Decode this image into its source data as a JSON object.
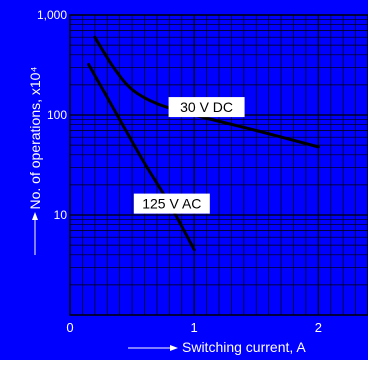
{
  "colors": {
    "background": "#0000ff",
    "plot_area": "#0000ff",
    "grid": "#000000",
    "curve": "#000000",
    "tick_text": "#ffffff",
    "label_box": "#ffffff",
    "label_text": "#000000"
  },
  "chart_data": {
    "type": "line",
    "title": "",
    "xlabel": "Switching current, A",
    "ylabel": "No. of operations, x10⁴",
    "xlim": [
      0,
      2.4
    ],
    "ylim": [
      1,
      1000
    ],
    "yscale": "log",
    "grid": true,
    "x_ticks": [
      {
        "value": 0,
        "label": "0"
      },
      {
        "value": 1,
        "label": "1"
      },
      {
        "value": 2,
        "label": "2"
      }
    ],
    "y_ticks": [
      {
        "value": 10,
        "label": "10"
      },
      {
        "value": 100,
        "label": "100"
      },
      {
        "value": 1000,
        "label": "1,000"
      }
    ],
    "series": [
      {
        "name": "30 V DC",
        "x": [
          0.2,
          0.35,
          0.5,
          0.7,
          1.0,
          1.5,
          2.0
        ],
        "y": [
          600,
          300,
          180,
          130,
          100,
          70,
          48
        ]
      },
      {
        "name": "125 V AC",
        "x": [
          0.15,
          0.3,
          0.45,
          0.6,
          0.8,
          1.0
        ],
        "y": [
          320,
          150,
          70,
          33,
          13,
          4.5
        ]
      }
    ]
  }
}
